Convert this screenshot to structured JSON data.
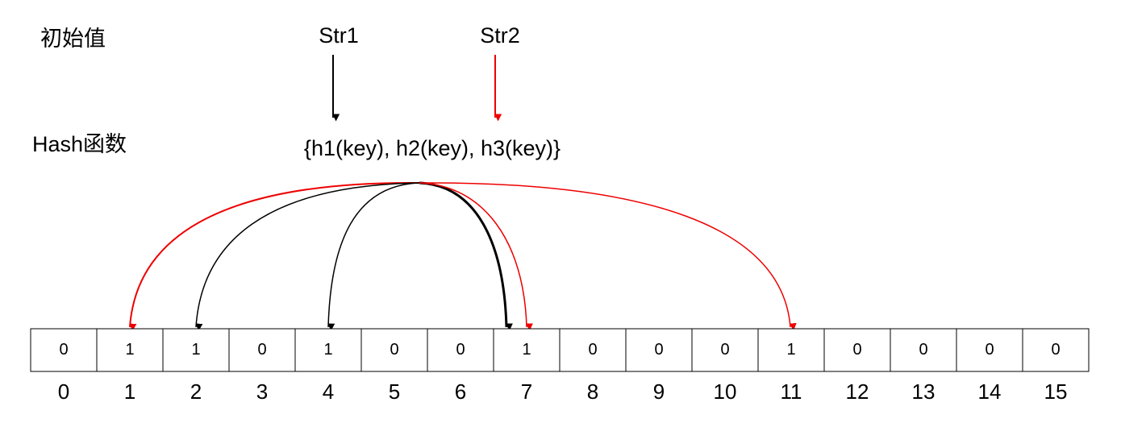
{
  "labels": {
    "initial": "初始值",
    "str1": "Str1",
    "str2": "Str2",
    "hash": "Hash函数",
    "functions": "{h1(key), h2(key), h3(key)}"
  },
  "cells": [
    0,
    1,
    1,
    0,
    1,
    0,
    0,
    1,
    0,
    0,
    0,
    1,
    0,
    0,
    0,
    0
  ],
  "indices": [
    0,
    1,
    2,
    3,
    4,
    5,
    6,
    7,
    8,
    9,
    10,
    11,
    12,
    13,
    14,
    15
  ]
}
